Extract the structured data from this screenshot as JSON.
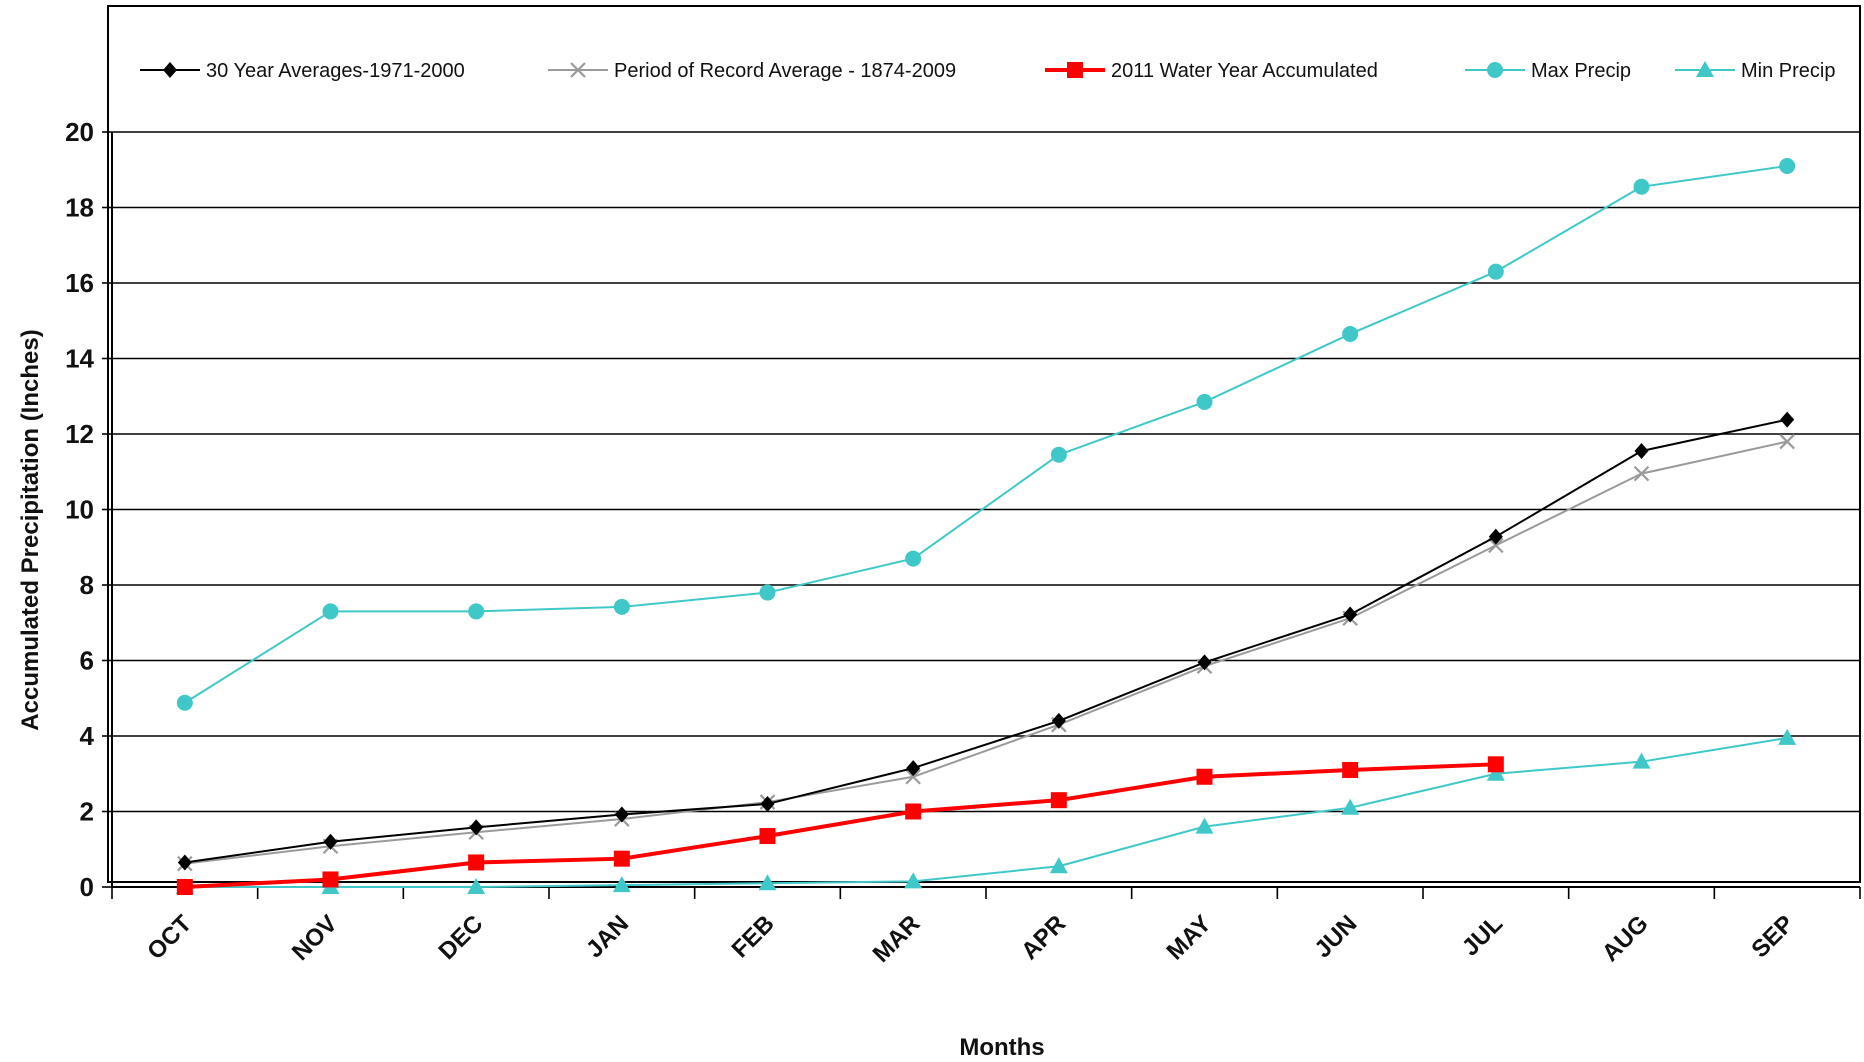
{
  "chart_data": {
    "type": "line",
    "title": "",
    "xlabel": "Months",
    "ylabel": "Accumulated Precipitation (Inches)",
    "ylim": [
      0,
      20
    ],
    "yticks": [
      0,
      2,
      4,
      6,
      8,
      10,
      12,
      14,
      16,
      18,
      20
    ],
    "grid": true,
    "legend_position": "top",
    "categories": [
      "OCT",
      "NOV",
      "DEC",
      "JAN",
      "FEB",
      "MAR",
      "APR",
      "MAY",
      "JUN",
      "JUL",
      "AUG",
      "SEP"
    ],
    "series": [
      {
        "name": "30 Year Averages-1971-2000",
        "color": "#000000",
        "marker": "diamond",
        "values": [
          0.65,
          1.2,
          1.58,
          1.92,
          2.2,
          3.15,
          4.4,
          5.95,
          7.22,
          9.28,
          11.55,
          12.38
        ]
      },
      {
        "name": "Period of Record Average - 1874-2009",
        "color": "#9a9a9a",
        "marker": "x",
        "values": [
          0.62,
          1.08,
          1.45,
          1.8,
          2.25,
          2.92,
          4.3,
          5.85,
          7.12,
          9.05,
          10.95,
          11.8
        ]
      },
      {
        "name": "2011 Water Year Accumulated",
        "color": "#ff0000",
        "marker": "square",
        "values": [
          0.0,
          0.2,
          0.65,
          0.75,
          1.35,
          2.0,
          2.3,
          2.92,
          3.1,
          3.25,
          null,
          null
        ]
      },
      {
        "name": "Max Precip",
        "color": "#40c8c8",
        "marker": "circle",
        "values": [
          4.88,
          7.3,
          7.3,
          7.42,
          7.8,
          8.7,
          11.45,
          12.85,
          14.65,
          16.3,
          18.55,
          19.1
        ]
      },
      {
        "name": "Min Precip",
        "color": "#40c8c8",
        "marker": "triangle",
        "values": [
          0.0,
          0.0,
          0.0,
          0.05,
          0.1,
          0.15,
          0.55,
          1.6,
          2.1,
          3.0,
          3.32,
          3.95
        ]
      }
    ]
  }
}
